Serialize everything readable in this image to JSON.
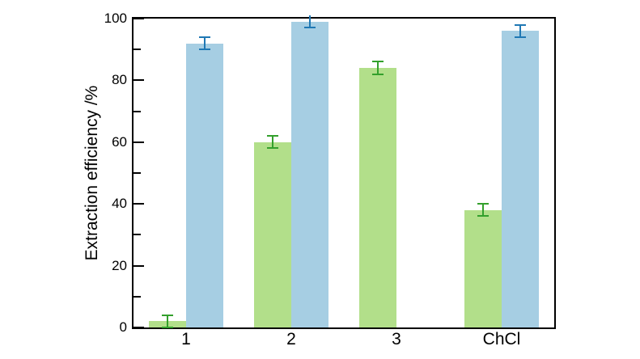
{
  "figure": {
    "background": "#ffffff",
    "axis_color": "#000000",
    "text_color": "#000000"
  },
  "chart_data": {
    "type": "bar",
    "title": "",
    "xlabel": "",
    "ylabel": "Extraction efficiency /%",
    "categories": [
      "1",
      "2",
      "3",
      "ChCl"
    ],
    "series": [
      {
        "name": "green-series",
        "color": "#b2df8a",
        "error_color": "#33a02c",
        "values": [
          2,
          60,
          84,
          38
        ],
        "errors": [
          2,
          2,
          2,
          2
        ]
      },
      {
        "name": "blue-series",
        "color": "#a6cee3",
        "error_color": "#1f78b4",
        "values": [
          92,
          99,
          null,
          96
        ],
        "errors": [
          2,
          2,
          null,
          2
        ]
      }
    ],
    "ylim": [
      0,
      100
    ],
    "yticks_major": [
      0,
      20,
      40,
      60,
      80,
      100
    ],
    "yticks_minor": [
      10,
      30,
      50,
      70,
      90
    ],
    "grid": false,
    "legend": "none"
  }
}
